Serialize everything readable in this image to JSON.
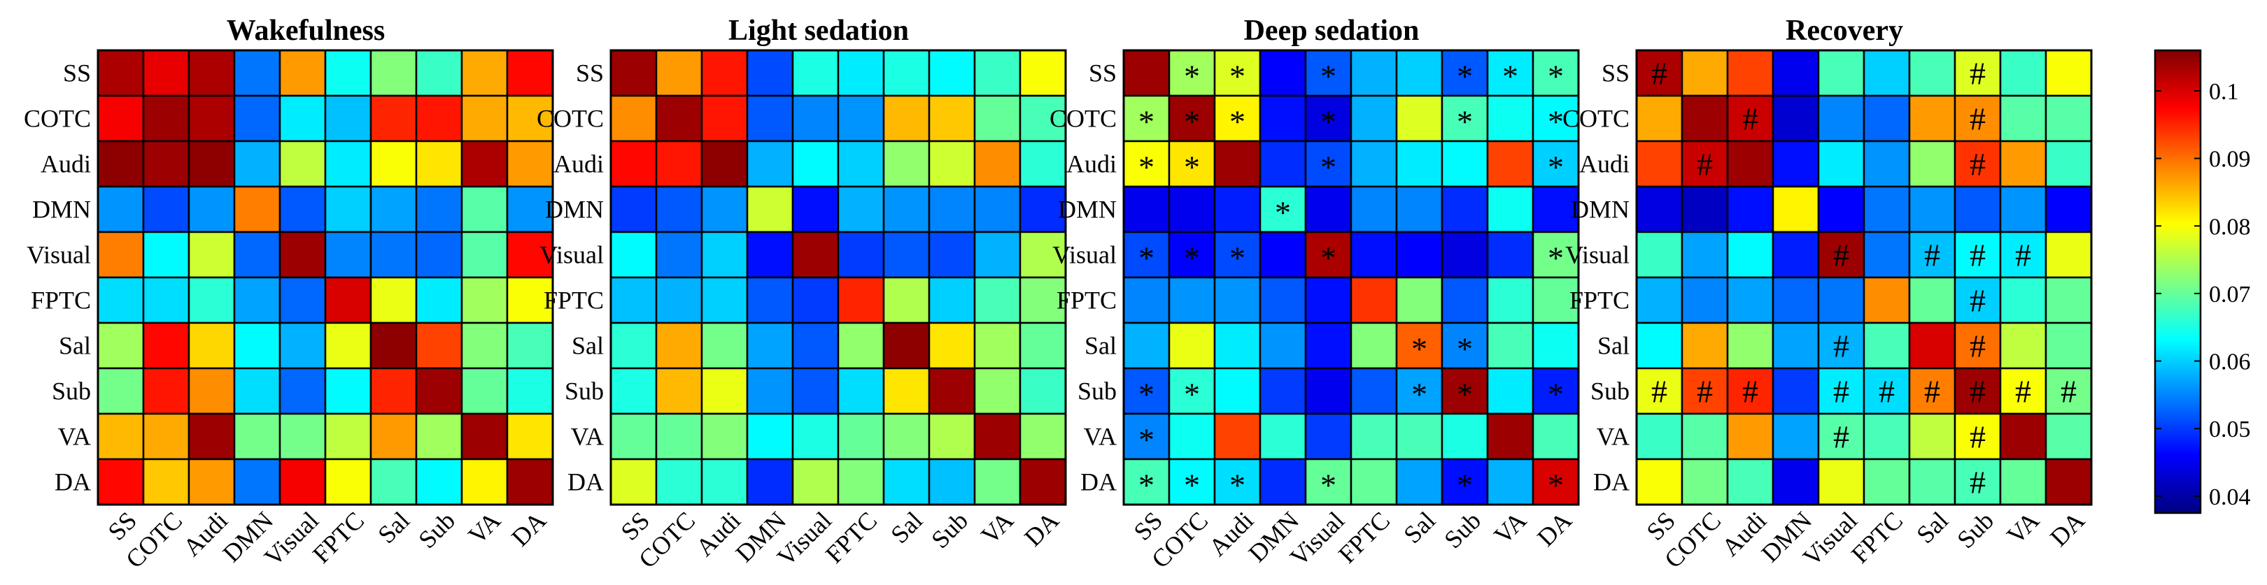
{
  "chart_data": {
    "type": "heatmap",
    "regions": [
      "SS",
      "COTC",
      "Audi",
      "DMN",
      "Visual",
      "FPTC",
      "Sal",
      "Sub",
      "VA",
      "DA"
    ],
    "colorbar": {
      "range": [
        0.0375,
        0.106
      ],
      "ticks": [
        "0.04",
        "0.05",
        "0.06",
        "0.07",
        "0.08",
        "0.09",
        "0.1"
      ],
      "tick_values": [
        0.04,
        0.05,
        0.06,
        0.07,
        0.08,
        0.09,
        0.1
      ],
      "colormap": "jet"
    },
    "panels": [
      {
        "title": "Wakefulness",
        "values": [
          [
            0.103,
            0.099,
            0.103,
            0.054,
            0.087,
            0.064,
            0.072,
            0.067,
            0.086,
            0.097
          ],
          [
            0.098,
            0.104,
            0.103,
            0.053,
            0.062,
            0.059,
            0.095,
            0.096,
            0.086,
            0.085
          ],
          [
            0.105,
            0.104,
            0.105,
            0.058,
            0.076,
            0.062,
            0.08,
            0.082,
            0.103,
            0.087
          ],
          [
            0.056,
            0.051,
            0.056,
            0.089,
            0.052,
            0.06,
            0.057,
            0.054,
            0.069,
            0.056
          ],
          [
            0.089,
            0.063,
            0.077,
            0.053,
            0.104,
            0.055,
            0.054,
            0.053,
            0.069,
            0.097
          ],
          [
            0.061,
            0.061,
            0.066,
            0.057,
            0.053,
            0.1,
            0.079,
            0.062,
            0.074,
            0.08
          ],
          [
            0.074,
            0.097,
            0.083,
            0.063,
            0.058,
            0.079,
            0.105,
            0.093,
            0.072,
            0.068
          ],
          [
            0.071,
            0.096,
            0.088,
            0.061,
            0.053,
            0.063,
            0.095,
            0.104,
            0.07,
            0.065
          ],
          [
            0.085,
            0.086,
            0.104,
            0.071,
            0.071,
            0.076,
            0.087,
            0.074,
            0.104,
            0.082
          ],
          [
            0.097,
            0.084,
            0.087,
            0.054,
            0.098,
            0.08,
            0.068,
            0.063,
            0.081,
            0.104
          ]
        ],
        "marks": []
      },
      {
        "title": "Light sedation",
        "values": [
          [
            0.104,
            0.087,
            0.096,
            0.051,
            0.065,
            0.062,
            0.065,
            0.063,
            0.067,
            0.08
          ],
          [
            0.088,
            0.104,
            0.096,
            0.052,
            0.055,
            0.056,
            0.085,
            0.084,
            0.07,
            0.068
          ],
          [
            0.097,
            0.096,
            0.105,
            0.058,
            0.063,
            0.06,
            0.073,
            0.077,
            0.088,
            0.066
          ],
          [
            0.05,
            0.052,
            0.056,
            0.077,
            0.047,
            0.058,
            0.056,
            0.055,
            0.055,
            0.049
          ],
          [
            0.063,
            0.054,
            0.06,
            0.047,
            0.104,
            0.05,
            0.052,
            0.051,
            0.058,
            0.075
          ],
          [
            0.059,
            0.058,
            0.06,
            0.052,
            0.05,
            0.095,
            0.075,
            0.06,
            0.068,
            0.072
          ],
          [
            0.066,
            0.086,
            0.071,
            0.057,
            0.052,
            0.073,
            0.105,
            0.082,
            0.074,
            0.07
          ],
          [
            0.065,
            0.085,
            0.079,
            0.056,
            0.052,
            0.061,
            0.082,
            0.104,
            0.073,
            0.067
          ],
          [
            0.07,
            0.07,
            0.072,
            0.063,
            0.065,
            0.07,
            0.072,
            0.075,
            0.104,
            0.073
          ],
          [
            0.078,
            0.066,
            0.066,
            0.049,
            0.075,
            0.072,
            0.061,
            0.059,
            0.071,
            0.104
          ]
        ],
        "marks": [
          [
            4,
            4
          ]
        ]
      },
      {
        "title": "Deep sedation",
        "values": [
          [
            0.104,
            0.074,
            0.078,
            0.046,
            0.052,
            0.058,
            0.06,
            0.052,
            0.062,
            0.068
          ],
          [
            0.074,
            0.104,
            0.081,
            0.047,
            0.044,
            0.058,
            0.078,
            0.068,
            0.064,
            0.063
          ],
          [
            0.08,
            0.082,
            0.104,
            0.049,
            0.051,
            0.058,
            0.062,
            0.063,
            0.093,
            0.06
          ],
          [
            0.045,
            0.045,
            0.048,
            0.066,
            0.045,
            0.055,
            0.055,
            0.049,
            0.064,
            0.047
          ],
          [
            0.051,
            0.046,
            0.051,
            0.046,
            0.103,
            0.047,
            0.046,
            0.044,
            0.049,
            0.071
          ],
          [
            0.055,
            0.056,
            0.056,
            0.052,
            0.047,
            0.094,
            0.072,
            0.052,
            0.066,
            0.07
          ],
          [
            0.058,
            0.079,
            0.062,
            0.056,
            0.047,
            0.072,
            0.091,
            0.055,
            0.068,
            0.064
          ],
          [
            0.052,
            0.066,
            0.063,
            0.05,
            0.045,
            0.052,
            0.057,
            0.104,
            0.062,
            0.048
          ],
          [
            0.055,
            0.064,
            0.093,
            0.066,
            0.05,
            0.068,
            0.068,
            0.065,
            0.104,
            0.068
          ],
          [
            0.068,
            0.063,
            0.061,
            0.049,
            0.07,
            0.07,
            0.057,
            0.047,
            0.058,
            0.1
          ]
        ],
        "marks": [
          [
            0,
            1
          ],
          [
            0,
            2
          ],
          [
            0,
            4
          ],
          [
            0,
            7
          ],
          [
            0,
            8
          ],
          [
            0,
            9
          ],
          [
            1,
            0
          ],
          [
            1,
            1
          ],
          [
            1,
            2
          ],
          [
            1,
            4
          ],
          [
            1,
            7
          ],
          [
            1,
            9
          ],
          [
            2,
            0
          ],
          [
            2,
            1
          ],
          [
            2,
            4
          ],
          [
            2,
            9
          ],
          [
            3,
            3
          ],
          [
            4,
            0
          ],
          [
            4,
            1
          ],
          [
            4,
            2
          ],
          [
            4,
            4
          ],
          [
            4,
            9
          ],
          [
            6,
            6
          ],
          [
            6,
            7
          ],
          [
            7,
            0
          ],
          [
            7,
            1
          ],
          [
            7,
            6
          ],
          [
            7,
            7
          ],
          [
            7,
            9
          ],
          [
            8,
            0
          ],
          [
            9,
            0
          ],
          [
            9,
            1
          ],
          [
            9,
            2
          ],
          [
            9,
            4
          ],
          [
            9,
            7
          ],
          [
            9,
            9
          ]
        ]
      },
      {
        "title": "Recovery",
        "values": [
          [
            0.103,
            0.086,
            0.093,
            0.045,
            0.068,
            0.06,
            0.068,
            0.078,
            0.067,
            0.08
          ],
          [
            0.086,
            0.104,
            0.101,
            0.043,
            0.055,
            0.053,
            0.087,
            0.088,
            0.069,
            0.069
          ],
          [
            0.093,
            0.101,
            0.104,
            0.047,
            0.062,
            0.056,
            0.073,
            0.094,
            0.087,
            0.067
          ],
          [
            0.044,
            0.042,
            0.047,
            0.081,
            0.046,
            0.054,
            0.056,
            0.052,
            0.056,
            0.046
          ],
          [
            0.067,
            0.057,
            0.063,
            0.048,
            0.104,
            0.054,
            0.059,
            0.063,
            0.062,
            0.079
          ],
          [
            0.058,
            0.055,
            0.057,
            0.053,
            0.054,
            0.088,
            0.07,
            0.06,
            0.066,
            0.07
          ],
          [
            0.063,
            0.086,
            0.073,
            0.057,
            0.058,
            0.068,
            0.1,
            0.09,
            0.076,
            0.07
          ],
          [
            0.079,
            0.093,
            0.095,
            0.05,
            0.062,
            0.061,
            0.089,
            0.104,
            0.08,
            0.071
          ],
          [
            0.067,
            0.069,
            0.087,
            0.057,
            0.069,
            0.068,
            0.076,
            0.08,
            0.104,
            0.069
          ],
          [
            0.08,
            0.071,
            0.068,
            0.045,
            0.079,
            0.07,
            0.069,
            0.068,
            0.07,
            0.104
          ]
        ],
        "marks": [
          [
            0,
            0
          ],
          [
            0,
            7
          ],
          [
            1,
            2
          ],
          [
            1,
            7
          ],
          [
            2,
            1
          ],
          [
            2,
            7
          ],
          [
            4,
            4
          ],
          [
            4,
            6
          ],
          [
            4,
            7
          ],
          [
            4,
            8
          ],
          [
            5,
            7
          ],
          [
            6,
            4
          ],
          [
            6,
            7
          ],
          [
            7,
            0
          ],
          [
            7,
            1
          ],
          [
            7,
            2
          ],
          [
            7,
            4
          ],
          [
            7,
            5
          ],
          [
            7,
            6
          ],
          [
            7,
            7
          ],
          [
            7,
            8
          ],
          [
            7,
            9
          ],
          [
            8,
            4
          ],
          [
            8,
            7
          ],
          [
            9,
            7
          ]
        ]
      }
    ]
  },
  "mark_symbols": [
    "",
    "",
    "*",
    "#"
  ]
}
